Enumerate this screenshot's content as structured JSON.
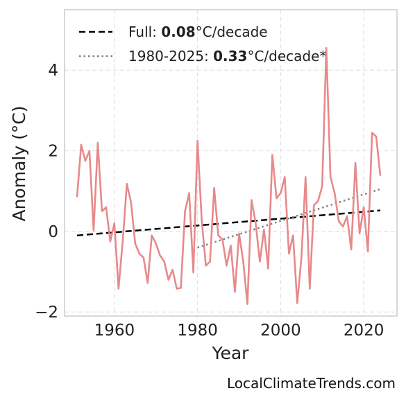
{
  "chart_data": {
    "type": "line",
    "title": "",
    "xlabel": "Year",
    "ylabel": "Anomaly (°C)",
    "xlim": [
      1948,
      2028
    ],
    "ylim": [
      -2.1,
      5.5
    ],
    "xticks": [
      1960,
      1980,
      2000,
      2020
    ],
    "yticks": [
      -2,
      0,
      2,
      4
    ],
    "tick_labels": {
      "x": [
        "1960",
        "1980",
        "2000",
        "2020"
      ],
      "y": [
        "−2",
        "0",
        "2",
        "4"
      ]
    },
    "grid": true,
    "legend_position": "top-left",
    "series": [
      {
        "name": "",
        "color": "#e8898a",
        "x": [
          1951,
          1952,
          1953,
          1954,
          1955,
          1956,
          1957,
          1958,
          1959,
          1960,
          1961,
          1962,
          1963,
          1964,
          1965,
          1966,
          1967,
          1968,
          1969,
          1970,
          1971,
          1972,
          1973,
          1974,
          1975,
          1976,
          1977,
          1978,
          1979,
          1980,
          1981,
          1982,
          1983,
          1984,
          1985,
          1986,
          1987,
          1988,
          1989,
          1990,
          1991,
          1992,
          1993,
          1994,
          1995,
          1996,
          1997,
          1998,
          1999,
          2000,
          2001,
          2002,
          2003,
          2004,
          2005,
          2006,
          2007,
          2008,
          2009,
          2010,
          2011,
          2012,
          2013,
          2014,
          2015,
          2016,
          2017,
          2018,
          2019,
          2020,
          2021,
          2022,
          2023,
          2024
        ],
        "values": [
          0.85,
          2.15,
          1.75,
          2.0,
          0.02,
          2.2,
          0.5,
          0.6,
          -0.25,
          0.2,
          -1.42,
          -0.25,
          1.18,
          0.72,
          -0.3,
          -0.55,
          -0.65,
          -1.28,
          -0.1,
          -0.3,
          -0.6,
          -0.75,
          -1.2,
          -0.95,
          -1.42,
          -1.4,
          0.5,
          0.95,
          -1.02,
          2.25,
          0.3,
          -0.85,
          -0.75,
          1.08,
          -0.1,
          -0.2,
          -0.85,
          -0.35,
          -1.5,
          -0.05,
          -0.75,
          -1.8,
          0.78,
          0.2,
          -0.75,
          0.05,
          -0.92,
          1.9,
          0.82,
          0.95,
          1.35,
          -0.55,
          -0.1,
          -1.78,
          -0.65,
          1.35,
          -1.42,
          0.65,
          0.75,
          1.12,
          4.55,
          1.35,
          0.95,
          0.25,
          0.12,
          0.38,
          -0.45,
          1.7,
          -0.05,
          0.6,
          -0.5,
          2.45,
          2.35,
          1.38
        ]
      }
    ],
    "trends": [
      {
        "label_prefix": "Full: ",
        "label_value": "0.08",
        "label_suffix": "°C/decade",
        "style": "dashed",
        "color": "#000000",
        "x": [
          1951,
          2024
        ],
        "y": [
          -0.1,
          0.52
        ]
      },
      {
        "label_prefix": "1980-2025: ",
        "label_value": "0.33",
        "label_suffix": "°C/decade*",
        "style": "dotted",
        "color": "#808080",
        "x": [
          1980,
          2024
        ],
        "y": [
          -0.4,
          1.05
        ]
      }
    ]
  },
  "credit": "LocalClimateTrends.com"
}
